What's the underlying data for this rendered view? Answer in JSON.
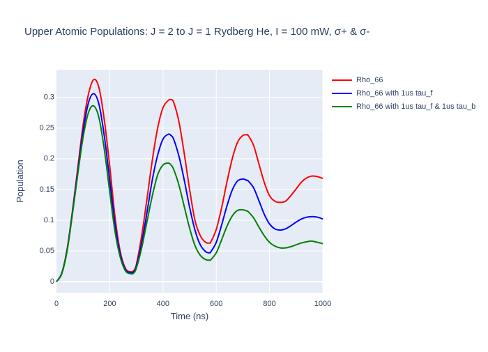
{
  "chart_data": {
    "type": "line",
    "title": "Upper Atomic Populations: J = 2 to J = 1 Rydberg He, I = 100 mW, σ+ & σ-",
    "xlabel": "Time (ns)",
    "ylabel": "Population",
    "xlim": [
      0,
      1000
    ],
    "ylim": [
      -0.018,
      0.345
    ],
    "xticks": [
      0,
      200,
      400,
      600,
      800,
      1000
    ],
    "xtick_labels": [
      "0",
      "200",
      "400",
      "600",
      "800",
      "1000"
    ],
    "yticks": [
      0,
      0.05,
      0.1,
      0.15,
      0.2,
      0.25,
      0.3
    ],
    "ytick_labels": [
      "0",
      "0.05",
      "0.1",
      "0.15",
      "0.2",
      "0.25",
      "0.3"
    ],
    "grid": true,
    "legend_position": "top-right, outside plot area",
    "x": [
      0,
      20,
      40,
      60,
      80,
      100,
      120,
      140,
      160,
      180,
      200,
      220,
      240,
      260,
      280,
      290,
      300,
      320,
      340,
      360,
      380,
      400,
      420,
      430,
      440,
      460,
      480,
      500,
      520,
      540,
      560,
      575,
      580,
      600,
      620,
      640,
      660,
      680,
      700,
      715,
      720,
      740,
      760,
      780,
      800,
      820,
      840,
      860,
      880,
      900,
      920,
      940,
      960,
      980,
      1000
    ],
    "series": [
      {
        "name": "Rho_66",
        "color": "#ff0000",
        "values": [
          0,
          0.014,
          0.053,
          0.115,
          0.185,
          0.255,
          0.305,
          0.329,
          0.315,
          0.262,
          0.188,
          0.105,
          0.048,
          0.021,
          0.016,
          0.018,
          0.028,
          0.075,
          0.135,
          0.198,
          0.25,
          0.283,
          0.295,
          0.296,
          0.292,
          0.26,
          0.208,
          0.15,
          0.1,
          0.075,
          0.064,
          0.063,
          0.065,
          0.085,
          0.12,
          0.162,
          0.2,
          0.227,
          0.238,
          0.239,
          0.238,
          0.222,
          0.192,
          0.162,
          0.14,
          0.131,
          0.129,
          0.131,
          0.14,
          0.151,
          0.162,
          0.169,
          0.172,
          0.171,
          0.168
        ]
      },
      {
        "name": "Rho_66 with 1us tau_f",
        "color": "#0000ff",
        "values": [
          0,
          0.014,
          0.052,
          0.113,
          0.18,
          0.245,
          0.291,
          0.306,
          0.288,
          0.236,
          0.165,
          0.093,
          0.044,
          0.019,
          0.015,
          0.016,
          0.025,
          0.063,
          0.113,
          0.166,
          0.206,
          0.232,
          0.24,
          0.238,
          0.232,
          0.204,
          0.165,
          0.121,
          0.084,
          0.06,
          0.049,
          0.047,
          0.049,
          0.064,
          0.092,
          0.123,
          0.149,
          0.164,
          0.167,
          0.165,
          0.164,
          0.153,
          0.132,
          0.11,
          0.094,
          0.086,
          0.084,
          0.086,
          0.091,
          0.097,
          0.102,
          0.105,
          0.106,
          0.105,
          0.102
        ]
      },
      {
        "name": "Rho_66 with 1us tau_f & 1us tau_b",
        "color": "#008000",
        "values": [
          0,
          0.013,
          0.05,
          0.11,
          0.175,
          0.235,
          0.275,
          0.286,
          0.266,
          0.214,
          0.146,
          0.081,
          0.039,
          0.017,
          0.013,
          0.014,
          0.022,
          0.055,
          0.098,
          0.14,
          0.174,
          0.19,
          0.193,
          0.19,
          0.183,
          0.157,
          0.122,
          0.087,
          0.059,
          0.043,
          0.036,
          0.035,
          0.036,
          0.047,
          0.068,
          0.09,
          0.107,
          0.116,
          0.117,
          0.115,
          0.114,
          0.104,
          0.089,
          0.075,
          0.064,
          0.058,
          0.055,
          0.055,
          0.057,
          0.06,
          0.063,
          0.065,
          0.066,
          0.064,
          0.062
        ]
      }
    ]
  }
}
